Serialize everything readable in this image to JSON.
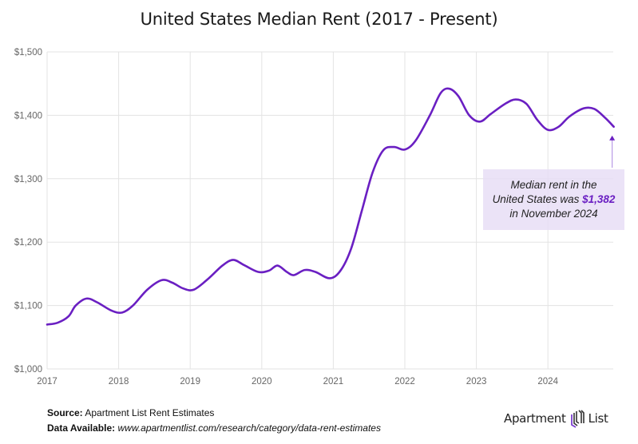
{
  "title": "United States Median Rent (2017 - Present)",
  "chart_data": {
    "type": "line",
    "title": "United States Median Rent (2017 - Present)",
    "xlabel": "",
    "ylabel": "",
    "xlim": [
      2017,
      2024.92
    ],
    "ylim": [
      1000,
      1500
    ],
    "grid": true,
    "line_color": "#6a1fc2",
    "y_ticks": [
      1000,
      1100,
      1200,
      1300,
      1400,
      1500
    ],
    "y_tick_labels": [
      "$1,000",
      "$1,100",
      "$1,200",
      "$1,300",
      "$1,400",
      "$1,500"
    ],
    "x_ticks": [
      2017,
      2018,
      2019,
      2020,
      2021,
      2022,
      2023,
      2024
    ],
    "x_tick_labels": [
      "2017",
      "2018",
      "2019",
      "2020",
      "2021",
      "2022",
      "2023",
      "2024"
    ],
    "series": [
      {
        "name": "Median Rent",
        "x": [
          2017.0,
          2017.15,
          2017.3,
          2017.4,
          2017.55,
          2017.7,
          2017.9,
          2018.05,
          2018.2,
          2018.4,
          2018.6,
          2018.75,
          2018.9,
          2019.05,
          2019.25,
          2019.45,
          2019.6,
          2019.75,
          2019.95,
          2020.1,
          2020.22,
          2020.35,
          2020.45,
          2020.6,
          2020.75,
          2020.95,
          2021.1,
          2021.25,
          2021.4,
          2021.55,
          2021.7,
          2021.85,
          2022.0,
          2022.15,
          2022.35,
          2022.5,
          2022.62,
          2022.75,
          2022.9,
          2023.05,
          2023.2,
          2023.4,
          2023.55,
          2023.7,
          2023.85,
          2024.0,
          2024.15,
          2024.3,
          2024.5,
          2024.65,
          2024.8,
          2024.92
        ],
        "values": [
          1070,
          1073,
          1083,
          1100,
          1111,
          1105,
          1092,
          1089,
          1100,
          1125,
          1140,
          1136,
          1127,
          1125,
          1142,
          1163,
          1172,
          1164,
          1153,
          1155,
          1163,
          1153,
          1148,
          1156,
          1153,
          1143,
          1155,
          1190,
          1250,
          1310,
          1345,
          1350,
          1346,
          1360,
          1400,
          1435,
          1442,
          1430,
          1400,
          1390,
          1402,
          1418,
          1425,
          1418,
          1393,
          1377,
          1382,
          1398,
          1411,
          1410,
          1396,
          1382
        ]
      }
    ],
    "annotation": {
      "line1": "Median rent in the",
      "line2_prefix": "United States was ",
      "line2_value": "$1,382",
      "line3": "in November 2024",
      "x": 2024.92,
      "value": 1382
    }
  },
  "footer": {
    "source_label": "Source:",
    "source_text": " Apartment List Rent Estimates",
    "data_label": "Data Available:",
    "data_url": " www.apartmentlist.com/research/category/data-rent-estimates"
  },
  "logo": {
    "word1": "Apartment",
    "word2": "List"
  }
}
